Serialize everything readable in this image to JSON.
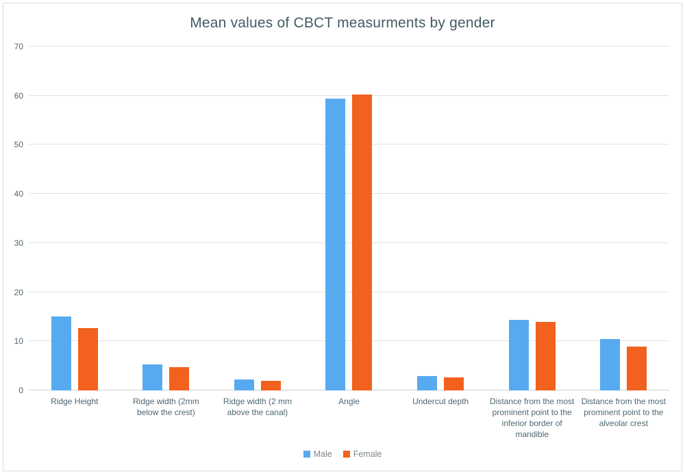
{
  "colors": {
    "male": "#58aaf0",
    "female": "#f2611d",
    "title_text": "#435a63",
    "category_text": "#4e6673",
    "tick_text": "#53656f",
    "legend_text": "#7d888d",
    "gridline": "#dfe3e4",
    "axis_line": "#c9d0d2",
    "frame_border": "#d8dede"
  },
  "legend": {
    "items": [
      {
        "label": "Male",
        "color": "#58aaf0"
      },
      {
        "label": "Female",
        "color": "#f2611d"
      }
    ]
  },
  "chart_data": {
    "type": "bar",
    "title": "Mean values of CBCT measurments by gender",
    "categories": [
      "Ridge Height",
      "Ridge width (2mm below the crest)",
      "Ridge width (2 mm above the canal)",
      "Angle",
      "Undercut depth",
      "Distance from the most prominent point to the inferior border of mandible",
      "Distance from the most prominent point to the alveolar crest"
    ],
    "series": [
      {
        "name": "Male",
        "color": "#58aaf0",
        "values": [
          15.0,
          5.3,
          2.3,
          59.4,
          2.9,
          14.3,
          10.4
        ]
      },
      {
        "name": "Female",
        "color": "#f2611d",
        "values": [
          12.7,
          4.8,
          1.9,
          60.2,
          2.7,
          13.9,
          8.9
        ]
      }
    ],
    "xlabel": "",
    "ylabel": "",
    "ylim": [
      0,
      70
    ],
    "yticks": [
      0,
      10,
      20,
      30,
      40,
      50,
      60,
      70
    ],
    "grid": true,
    "legend_position": "bottom"
  }
}
